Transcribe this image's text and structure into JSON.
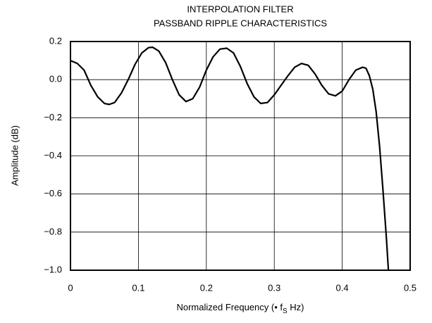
{
  "chart_data": {
    "type": "line",
    "title": [
      "INTERPOLATION FILTER",
      "PASSBAND RIPPLE CHARACTERISTICS"
    ],
    "xlabel": {
      "before": "Normalized Frequency (• f",
      "sub": "S",
      "after": " Hz)"
    },
    "ylabel": "Amplitude (dB)",
    "xlim": [
      0,
      0.5
    ],
    "ylim": [
      -1.0,
      0.2
    ],
    "xticks": [
      0,
      0.1,
      0.2,
      0.3,
      0.4,
      0.5
    ],
    "yticks": [
      0.2,
      {
        "value": 0,
        "label": "0.0"
      },
      {
        "value": -0.2,
        "label": "−0.2"
      },
      {
        "value": -0.4,
        "label": "−0.4"
      },
      {
        "value": -0.6,
        "label": "−0.6"
      },
      {
        "value": -0.8,
        "label": "−0.8"
      },
      {
        "value": -1.0,
        "label": "−1.0"
      }
    ],
    "grid": true,
    "series": [
      {
        "color": "#000000",
        "x": [
          0,
          0.01,
          0.02,
          0.03,
          0.04,
          0.05,
          0.057,
          0.065,
          0.075,
          0.085,
          0.095,
          0.105,
          0.115,
          0.121,
          0.13,
          0.14,
          0.15,
          0.16,
          0.17,
          0.18,
          0.19,
          0.2,
          0.21,
          0.22,
          0.23,
          0.24,
          0.25,
          0.26,
          0.27,
          0.28,
          0.29,
          0.3,
          0.31,
          0.32,
          0.33,
          0.34,
          0.35,
          0.36,
          0.37,
          0.38,
          0.39,
          0.4,
          0.41,
          0.42,
          0.43,
          0.435,
          0.44,
          0.445,
          0.45,
          0.455,
          0.46,
          0.465,
          0.468
        ],
        "values": [
          0.1,
          0.085,
          0.05,
          -0.03,
          -0.09,
          -0.125,
          -0.13,
          -0.12,
          -0.07,
          0.0,
          0.08,
          0.14,
          0.168,
          0.17,
          0.15,
          0.09,
          0.0,
          -0.08,
          -0.115,
          -0.1,
          -0.04,
          0.05,
          0.12,
          0.16,
          0.165,
          0.14,
          0.07,
          -0.02,
          -0.09,
          -0.125,
          -0.12,
          -0.08,
          -0.03,
          0.02,
          0.065,
          0.085,
          0.075,
          0.03,
          -0.03,
          -0.075,
          -0.085,
          -0.06,
          0.0,
          0.05,
          0.065,
          0.06,
          0.02,
          -0.05,
          -0.17,
          -0.35,
          -0.58,
          -0.83,
          -1.0
        ]
      }
    ]
  }
}
